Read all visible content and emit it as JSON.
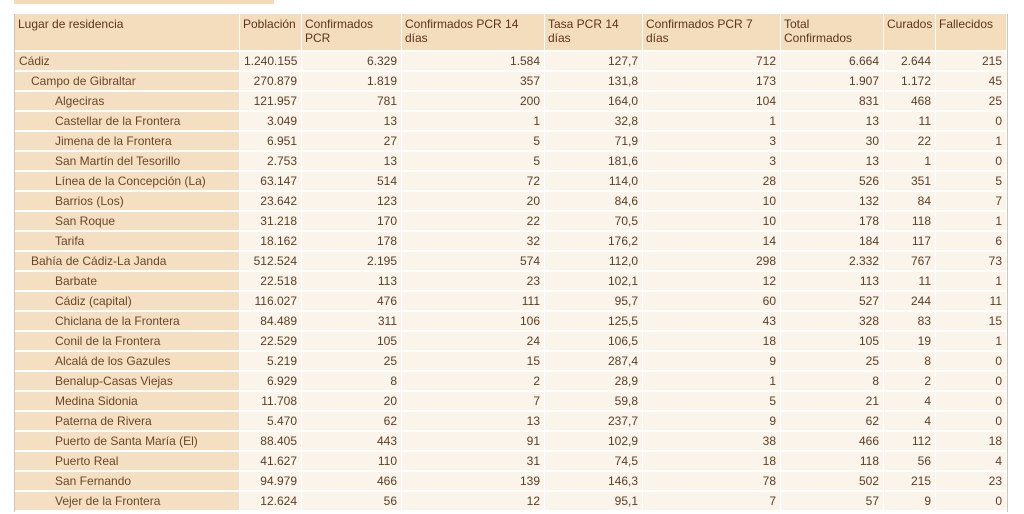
{
  "headers": {
    "lugar": "Lugar de residencia",
    "poblacion": "Población",
    "confirmados_pcr": "Confirmados PCR",
    "confirmados_pcr_14": "Confirmados PCR 14 días",
    "tasa_pcr_14": "Tasa PCR 14 días",
    "confirmados_pcr_7": "Confirmados PCR 7 días",
    "total_confirmados": "Total Confirmados",
    "curados": "Curados",
    "fallecidos": "Fallecidos"
  },
  "rows": [
    {
      "level": 0,
      "name": "Cádiz",
      "poblacion": "1.240.155",
      "conf_pcr": "6.329",
      "conf_14": "1.584",
      "tasa_14": "127,7",
      "conf_7": "712",
      "total": "6.664",
      "curados": "2.644",
      "fallecidos": "215"
    },
    {
      "level": 1,
      "name": "Campo de Gibraltar",
      "poblacion": "270.879",
      "conf_pcr": "1.819",
      "conf_14": "357",
      "tasa_14": "131,8",
      "conf_7": "173",
      "total": "1.907",
      "curados": "1.172",
      "fallecidos": "45"
    },
    {
      "level": 2,
      "name": "Algeciras",
      "poblacion": "121.957",
      "conf_pcr": "781",
      "conf_14": "200",
      "tasa_14": "164,0",
      "conf_7": "104",
      "total": "831",
      "curados": "468",
      "fallecidos": "25"
    },
    {
      "level": 2,
      "name": "Castellar de la Frontera",
      "poblacion": "3.049",
      "conf_pcr": "13",
      "conf_14": "1",
      "tasa_14": "32,8",
      "conf_7": "1",
      "total": "13",
      "curados": "11",
      "fallecidos": "0"
    },
    {
      "level": 2,
      "name": "Jimena de la Frontera",
      "poblacion": "6.951",
      "conf_pcr": "27",
      "conf_14": "5",
      "tasa_14": "71,9",
      "conf_7": "3",
      "total": "30",
      "curados": "22",
      "fallecidos": "1"
    },
    {
      "level": 2,
      "name": "San Martín del Tesorillo",
      "poblacion": "2.753",
      "conf_pcr": "13",
      "conf_14": "5",
      "tasa_14": "181,6",
      "conf_7": "3",
      "total": "13",
      "curados": "1",
      "fallecidos": "0"
    },
    {
      "level": 2,
      "name": "Línea de la Concepción (La)",
      "poblacion": "63.147",
      "conf_pcr": "514",
      "conf_14": "72",
      "tasa_14": "114,0",
      "conf_7": "28",
      "total": "526",
      "curados": "351",
      "fallecidos": "5"
    },
    {
      "level": 2,
      "name": "Barrios (Los)",
      "poblacion": "23.642",
      "conf_pcr": "123",
      "conf_14": "20",
      "tasa_14": "84,6",
      "conf_7": "10",
      "total": "132",
      "curados": "84",
      "fallecidos": "7"
    },
    {
      "level": 2,
      "name": "San Roque",
      "poblacion": "31.218",
      "conf_pcr": "170",
      "conf_14": "22",
      "tasa_14": "70,5",
      "conf_7": "10",
      "total": "178",
      "curados": "118",
      "fallecidos": "1"
    },
    {
      "level": 2,
      "name": "Tarifa",
      "poblacion": "18.162",
      "conf_pcr": "178",
      "conf_14": "32",
      "tasa_14": "176,2",
      "conf_7": "14",
      "total": "184",
      "curados": "117",
      "fallecidos": "6"
    },
    {
      "level": 1,
      "name": "Bahía de Cádiz-La Janda",
      "poblacion": "512.524",
      "conf_pcr": "2.195",
      "conf_14": "574",
      "tasa_14": "112,0",
      "conf_7": "298",
      "total": "2.332",
      "curados": "767",
      "fallecidos": "73"
    },
    {
      "level": 2,
      "name": "Barbate",
      "poblacion": "22.518",
      "conf_pcr": "113",
      "conf_14": "23",
      "tasa_14": "102,1",
      "conf_7": "12",
      "total": "113",
      "curados": "11",
      "fallecidos": "1"
    },
    {
      "level": 2,
      "name": "Cádiz (capital)",
      "poblacion": "116.027",
      "conf_pcr": "476",
      "conf_14": "111",
      "tasa_14": "95,7",
      "conf_7": "60",
      "total": "527",
      "curados": "244",
      "fallecidos": "11"
    },
    {
      "level": 2,
      "name": "Chiclana de la Frontera",
      "poblacion": "84.489",
      "conf_pcr": "311",
      "conf_14": "106",
      "tasa_14": "125,5",
      "conf_7": "43",
      "total": "328",
      "curados": "83",
      "fallecidos": "15"
    },
    {
      "level": 2,
      "name": "Conil de la Frontera",
      "poblacion": "22.529",
      "conf_pcr": "105",
      "conf_14": "24",
      "tasa_14": "106,5",
      "conf_7": "18",
      "total": "105",
      "curados": "19",
      "fallecidos": "1"
    },
    {
      "level": 2,
      "name": "Alcalá de los Gazules",
      "poblacion": "5.219",
      "conf_pcr": "25",
      "conf_14": "15",
      "tasa_14": "287,4",
      "conf_7": "9",
      "total": "25",
      "curados": "8",
      "fallecidos": "0"
    },
    {
      "level": 2,
      "name": "Benalup-Casas Viejas",
      "poblacion": "6.929",
      "conf_pcr": "8",
      "conf_14": "2",
      "tasa_14": "28,9",
      "conf_7": "1",
      "total": "8",
      "curados": "2",
      "fallecidos": "0"
    },
    {
      "level": 2,
      "name": "Medina Sidonia",
      "poblacion": "11.708",
      "conf_pcr": "20",
      "conf_14": "7",
      "tasa_14": "59,8",
      "conf_7": "5",
      "total": "21",
      "curados": "4",
      "fallecidos": "0"
    },
    {
      "level": 2,
      "name": "Paterna de Rivera",
      "poblacion": "5.470",
      "conf_pcr": "62",
      "conf_14": "13",
      "tasa_14": "237,7",
      "conf_7": "9",
      "total": "62",
      "curados": "4",
      "fallecidos": "0"
    },
    {
      "level": 2,
      "name": "Puerto de Santa María (El)",
      "poblacion": "88.405",
      "conf_pcr": "443",
      "conf_14": "91",
      "tasa_14": "102,9",
      "conf_7": "38",
      "total": "466",
      "curados": "112",
      "fallecidos": "18"
    },
    {
      "level": 2,
      "name": "Puerto Real",
      "poblacion": "41.627",
      "conf_pcr": "110",
      "conf_14": "31",
      "tasa_14": "74,5",
      "conf_7": "18",
      "total": "118",
      "curados": "56",
      "fallecidos": "4"
    },
    {
      "level": 2,
      "name": "San Fernando",
      "poblacion": "94.979",
      "conf_pcr": "466",
      "conf_14": "139",
      "tasa_14": "146,3",
      "conf_7": "78",
      "total": "502",
      "curados": "215",
      "fallecidos": "23"
    },
    {
      "level": 2,
      "name": "Vejer de la Frontera",
      "poblacion": "12.624",
      "conf_pcr": "56",
      "conf_14": "12",
      "tasa_14": "95,1",
      "conf_7": "7",
      "total": "57",
      "curados": "9",
      "fallecidos": "0"
    }
  ]
}
